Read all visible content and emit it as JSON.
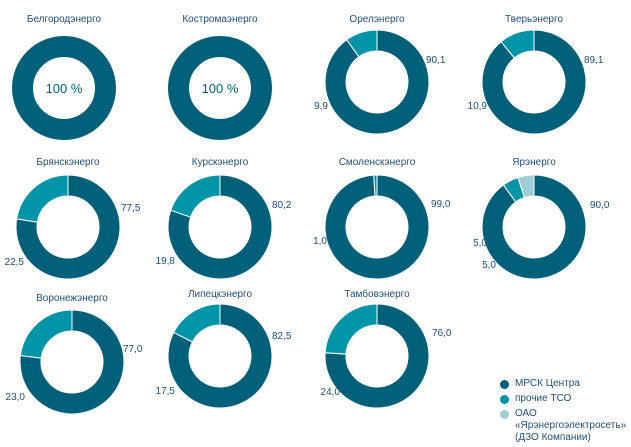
{
  "colors": {
    "mrsk": "#00607a",
    "tso": "#0094a8",
    "yarg": "#9fccd6",
    "title": "#1f4e79",
    "value": "#1f4e79"
  },
  "legend": [
    {
      "label": "МРСК Центра",
      "color_key": "mrsk"
    },
    {
      "label": "прочие ТСО",
      "color_key": "tso"
    },
    {
      "label": "ОАО «Ярэнергоэлектросеть»\n(ДЗО Компании)",
      "color_key": "yarg"
    }
  ],
  "chart_data": [
    {
      "type": "pie",
      "title": "Белгородэнерго",
      "center_text": "100 %",
      "slices": [
        {
          "series": "МРСК Центра",
          "value": 100,
          "label": ""
        }
      ]
    },
    {
      "type": "pie",
      "title": "Костромаэнерго",
      "center_text": "100 %",
      "slices": [
        {
          "series": "МРСК Центра",
          "value": 100,
          "label": ""
        }
      ]
    },
    {
      "type": "pie",
      "title": "Орелэнерго",
      "slices": [
        {
          "series": "МРСК Центра",
          "value": 90.1,
          "label": "90,1"
        },
        {
          "series": "прочие ТСО",
          "value": 9.9,
          "label": "9,9"
        }
      ]
    },
    {
      "type": "pie",
      "title": "Тверьэнерго",
      "slices": [
        {
          "series": "МРСК Центра",
          "value": 89.1,
          "label": "89,1"
        },
        {
          "series": "прочие ТСО",
          "value": 10.9,
          "label": "10,9"
        }
      ]
    },
    {
      "type": "pie",
      "title": "Брянскэнерго",
      "slices": [
        {
          "series": "МРСК Центра",
          "value": 77.5,
          "label": "77,5"
        },
        {
          "series": "прочие ТСО",
          "value": 22.5,
          "label": "22,5"
        }
      ]
    },
    {
      "type": "pie",
      "title": "Курскэнерго",
      "slices": [
        {
          "series": "МРСК Центра",
          "value": 80.2,
          "label": "80,2"
        },
        {
          "series": "прочие ТСО",
          "value": 19.8,
          "label": "19,8"
        }
      ]
    },
    {
      "type": "pie",
      "title": "Смоленскэнерго",
      "slices": [
        {
          "series": "МРСК Центра",
          "value": 99.0,
          "label": "99,0"
        },
        {
          "series": "прочие ТСО",
          "value": 1.0,
          "label": "1,0"
        }
      ]
    },
    {
      "type": "pie",
      "title": "Ярэнерго",
      "slices": [
        {
          "series": "МРСК Центра",
          "value": 90.0,
          "label": "90,0"
        },
        {
          "series": "прочие ТСО",
          "value": 5.0,
          "label": "5,0"
        },
        {
          "series": "ОАО «Ярэнергоэлектросеть» (ДЗО Компании)",
          "value": 5.0,
          "label": "5,0"
        }
      ]
    },
    {
      "type": "pie",
      "title": "Воронежэнерго",
      "slices": [
        {
          "series": "МРСК Центра",
          "value": 77.0,
          "label": "77,0"
        },
        {
          "series": "прочие ТСО",
          "value": 23.0,
          "label": "23,0"
        }
      ]
    },
    {
      "type": "pie",
      "title": "Липецкэнерго",
      "slices": [
        {
          "series": "МРСК Центра",
          "value": 82.5,
          "label": "82,5"
        },
        {
          "series": "прочие ТСО",
          "value": 17.5,
          "label": "17,5"
        }
      ]
    },
    {
      "type": "pie",
      "title": "Тамбовэнерго",
      "slices": [
        {
          "series": "МРСК Центра",
          "value": 76.0,
          "label": "76,0"
        },
        {
          "series": "прочие ТСО",
          "value": 24.0,
          "label": "24,0"
        }
      ]
    }
  ]
}
